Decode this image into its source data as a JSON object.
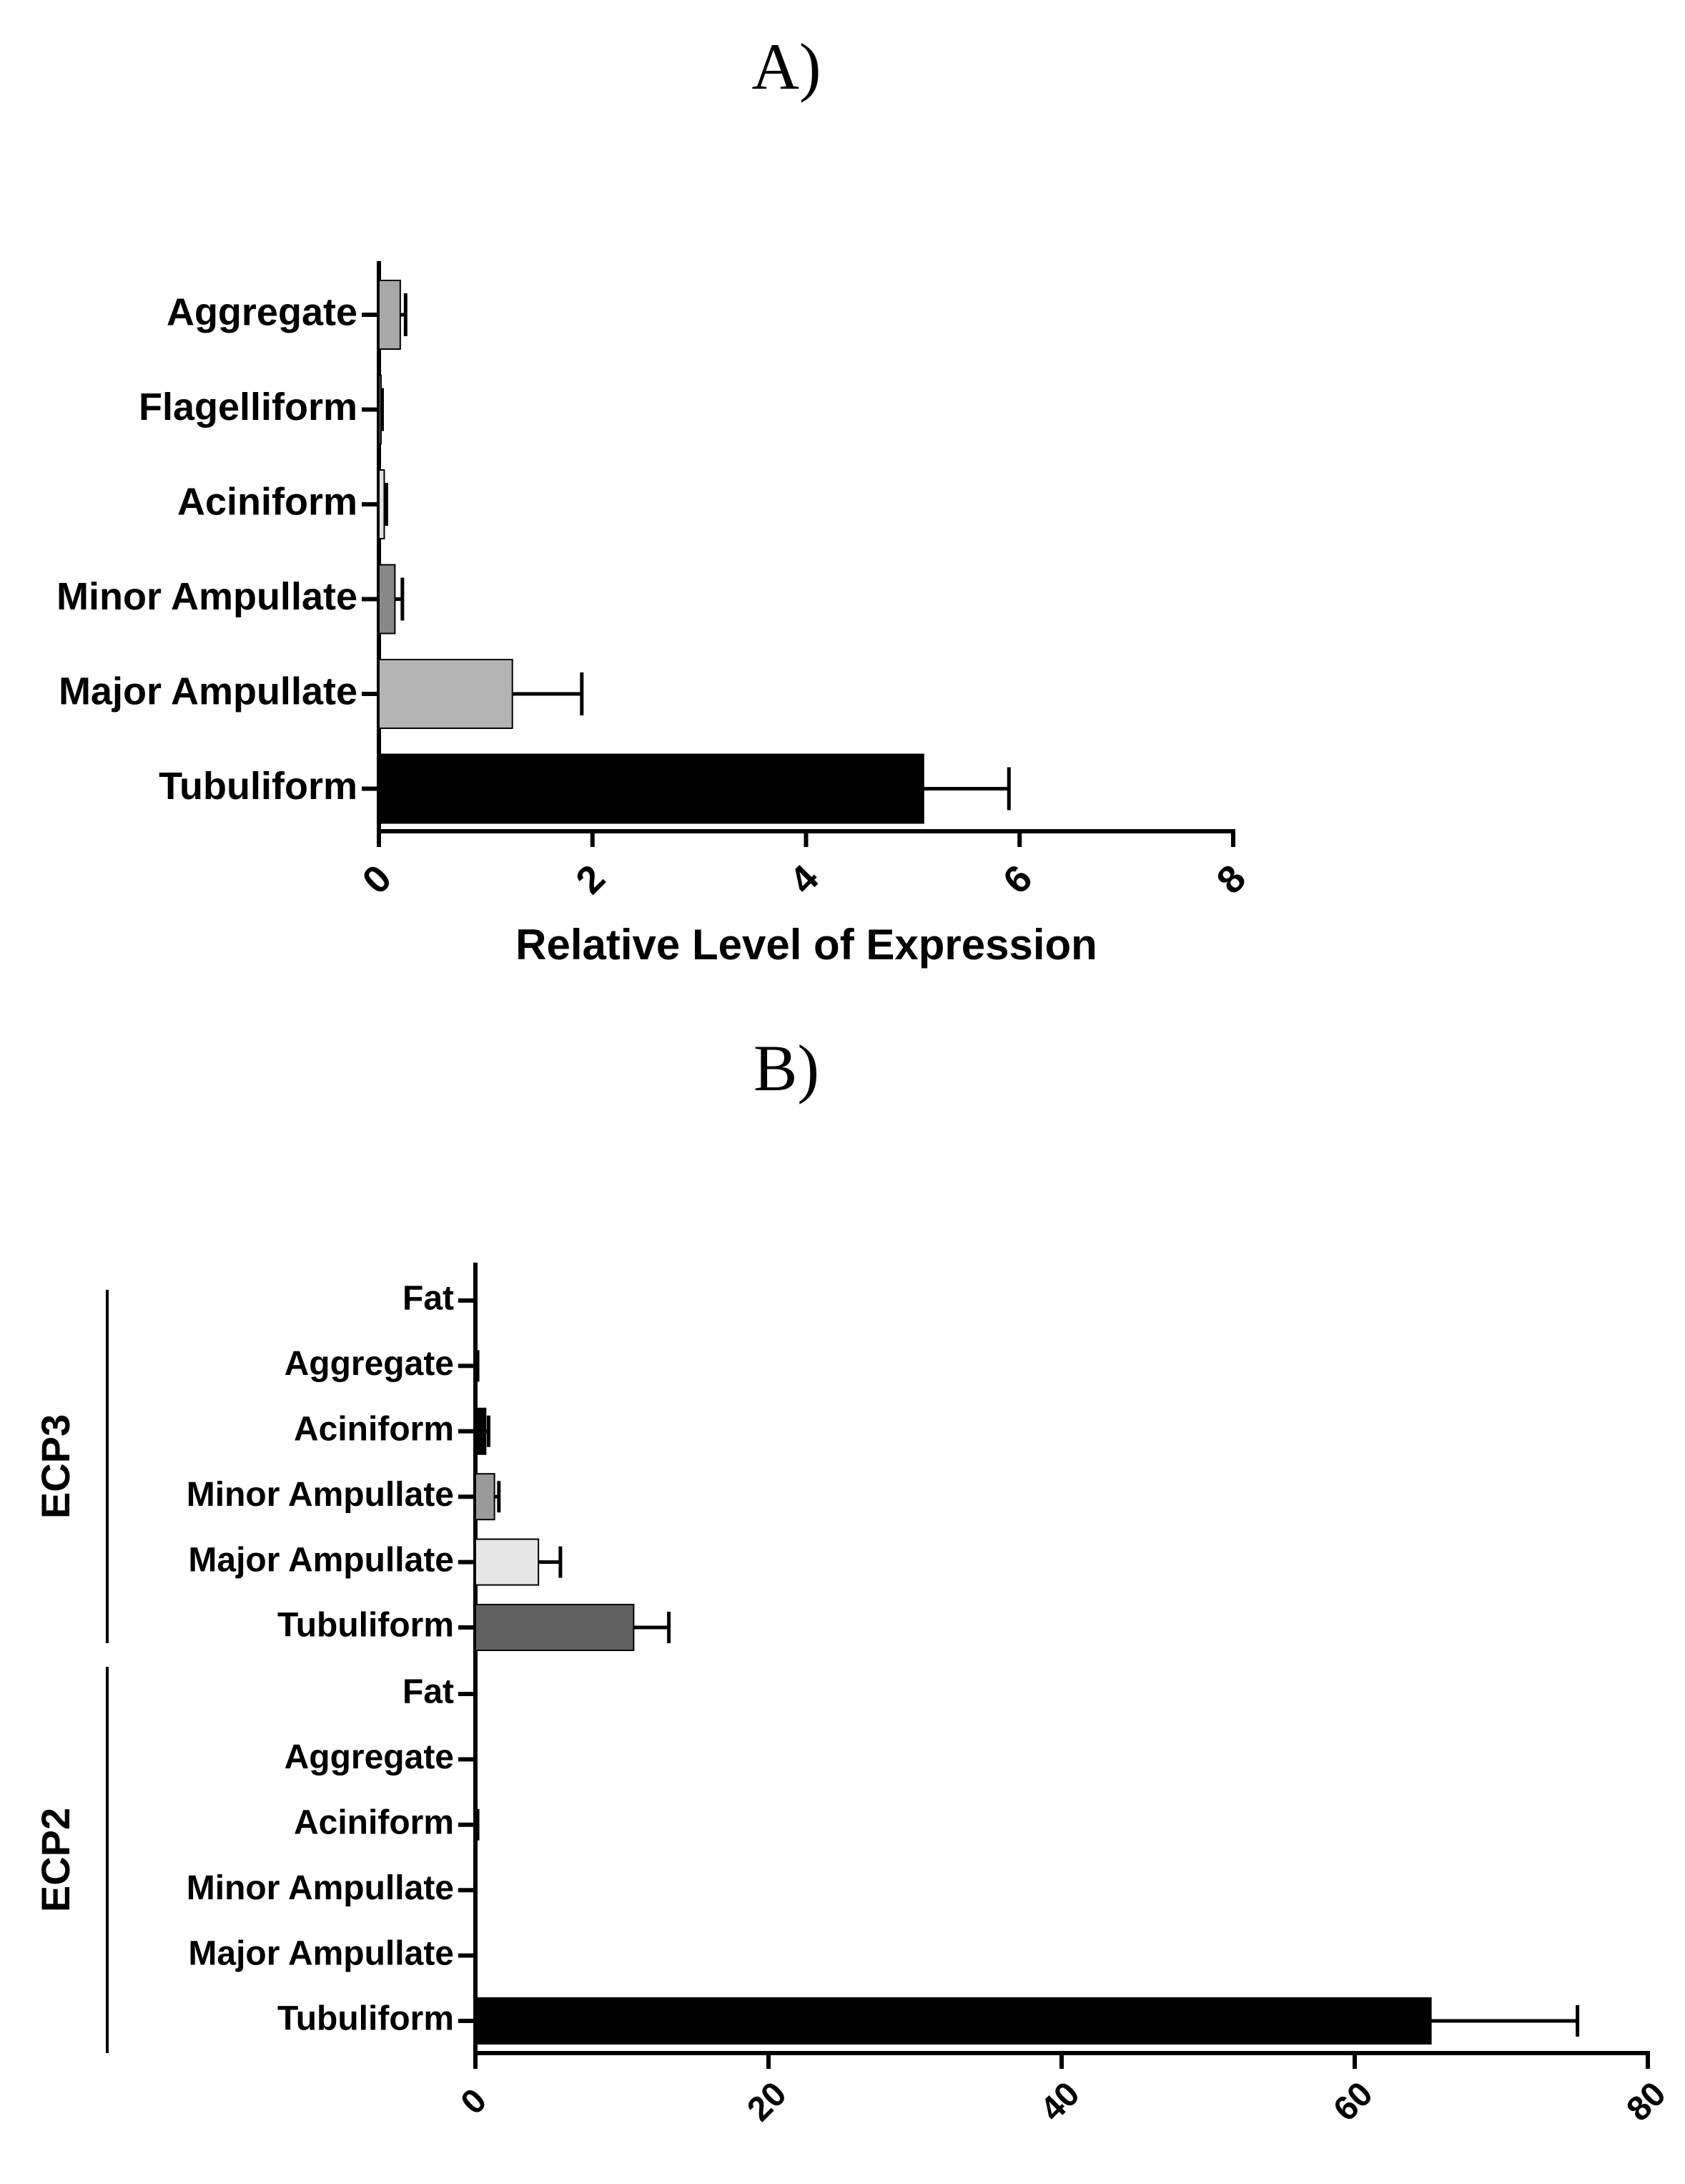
{
  "chart_data": [
    {
      "type": "bar",
      "orientation": "horizontal",
      "panel": "A)",
      "xlabel": "Relative Level of Expression",
      "ylabel": "",
      "xlim": [
        0,
        8
      ],
      "xticks": [
        "0",
        "2",
        "4",
        "6",
        "8"
      ],
      "categories": [
        "Aggregate",
        "Flagelliform",
        "Aciniform",
        "Minor Ampullate",
        "Major Ampullate",
        "Tubuliform"
      ],
      "values": [
        0.2,
        0.02,
        0.05,
        0.15,
        1.25,
        5.1
      ],
      "errors": [
        0.05,
        0.01,
        0.02,
        0.07,
        0.65,
        0.8
      ],
      "colors": [
        "#a8a8a8",
        "#7a7a7a",
        "#e2e2e2",
        "#888888",
        "#b4b4b4",
        "#000000"
      ],
      "grid": false,
      "legend": "none"
    },
    {
      "type": "bar",
      "orientation": "horizontal",
      "panel": "B)",
      "xlabel": "",
      "ylabel": "",
      "xlim": [
        0,
        80
      ],
      "xticks": [
        "0",
        "20",
        "40",
        "60",
        "80"
      ],
      "groups": [
        {
          "name": "ECP3",
          "categories": [
            "Fat",
            "Aggregate",
            "Aciniform",
            "Minor Ampullate",
            "Major Ampullate",
            "Tubuliform"
          ],
          "values": [
            0.05,
            0.1,
            0.7,
            1.3,
            4.3,
            10.8
          ],
          "errors": [
            0.02,
            0.05,
            0.2,
            0.3,
            1.5,
            2.4
          ],
          "colors": [
            "#000000",
            "#000000",
            "#000000",
            "#9a9a9a",
            "#e6e6e6",
            "#606060"
          ]
        },
        {
          "name": "ECP2",
          "categories": [
            "Fat",
            "Aggregate",
            "Aciniform",
            "Minor Ampullate",
            "Major Ampullate",
            "Tubuliform"
          ],
          "values": [
            0.02,
            0.05,
            0.1,
            0.05,
            0.02,
            65.2
          ],
          "errors": [
            0.01,
            0.02,
            0.05,
            0.02,
            0.01,
            10.0
          ],
          "colors": [
            "#000000",
            "#000000",
            "#000000",
            "#000000",
            "#000000",
            "#000000"
          ]
        }
      ],
      "grid": false,
      "legend": "none"
    }
  ]
}
